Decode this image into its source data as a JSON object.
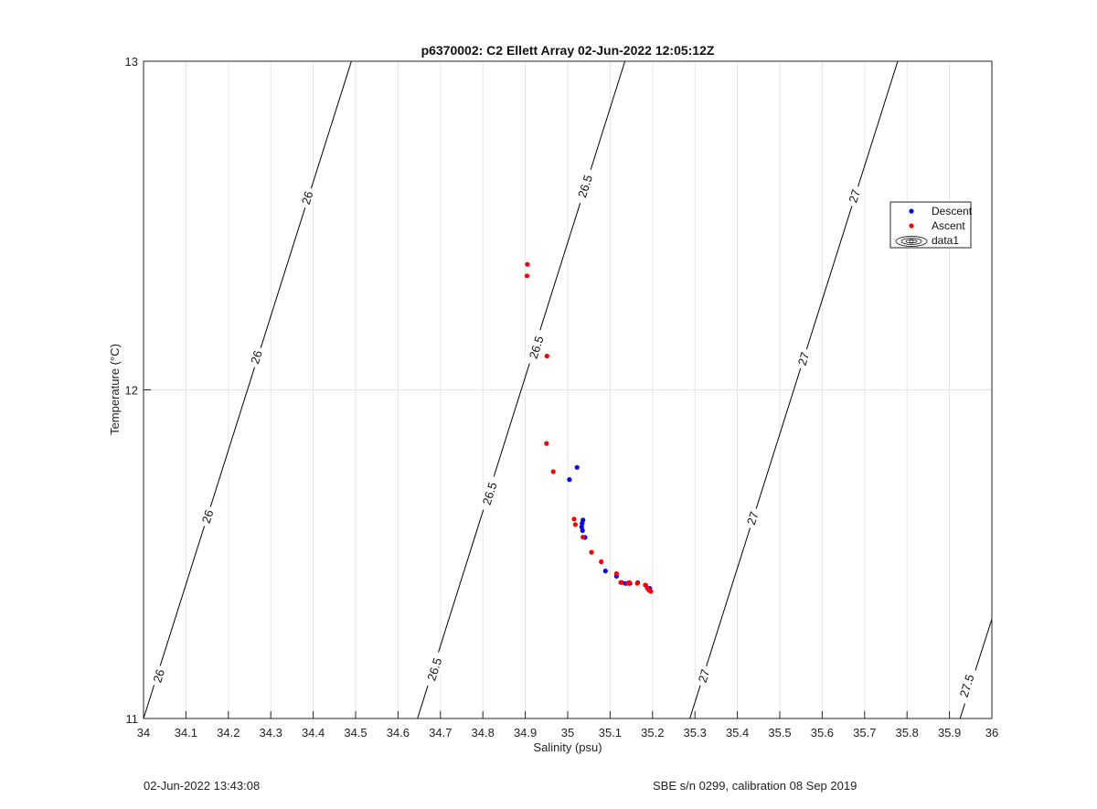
{
  "chart_data": {
    "type": "scatter",
    "title": "p6370002: C2 Ellett Array 02-Jun-2022 12:05:12Z",
    "xlabel": "Salinity (psu)",
    "ylabel": "Temperature (°C)",
    "xlim": [
      34,
      36
    ],
    "ylim": [
      11,
      13
    ],
    "xticks": [
      "34",
      "34.1",
      "34.2",
      "34.3",
      "34.4",
      "34.5",
      "34.6",
      "34.7",
      "34.8",
      "34.9",
      "35",
      "35.1",
      "35.2",
      "35.3",
      "35.4",
      "35.5",
      "35.6",
      "35.7",
      "35.8",
      "35.9",
      "36"
    ],
    "yticks": [
      "11",
      "12",
      "13"
    ],
    "grid": true,
    "legend_position": "top-right",
    "series": [
      {
        "name": "Descent",
        "color": "#0000ff",
        "points": [
          [
            35.022,
            11.764
          ],
          [
            35.004,
            11.727
          ],
          [
            35.036,
            11.604
          ],
          [
            35.034,
            11.594
          ],
          [
            35.033,
            11.583
          ],
          [
            35.035,
            11.572
          ],
          [
            35.041,
            11.551
          ],
          [
            35.089,
            11.449
          ],
          [
            35.115,
            11.433
          ],
          [
            35.127,
            11.414
          ],
          [
            35.136,
            11.411
          ],
          [
            35.147,
            11.411
          ],
          [
            35.165,
            11.413
          ],
          [
            35.184,
            11.405
          ],
          [
            35.193,
            11.396
          ]
        ]
      },
      {
        "name": "Ascent",
        "color": "#ff0000",
        "points": [
          [
            34.905,
            12.382
          ],
          [
            34.904,
            12.347
          ],
          [
            34.951,
            12.103
          ],
          [
            34.95,
            11.837
          ],
          [
            34.966,
            11.751
          ],
          [
            35.015,
            11.607
          ],
          [
            35.018,
            11.59
          ],
          [
            35.036,
            11.552
          ],
          [
            35.056,
            11.506
          ],
          [
            35.079,
            11.477
          ],
          [
            35.115,
            11.441
          ],
          [
            35.125,
            11.414
          ],
          [
            35.141,
            11.411
          ],
          [
            35.145,
            11.414
          ],
          [
            35.164,
            11.411
          ],
          [
            35.183,
            11.406
          ],
          [
            35.188,
            11.396
          ],
          [
            35.192,
            11.39
          ],
          [
            35.196,
            11.387
          ]
        ]
      },
      {
        "name": "data1",
        "type": "contour",
        "color": "#000000",
        "levels": [
          {
            "value": "26",
            "lines": [
              [
                [
                  34.0,
                  11.0
                ],
                [
                  34.49,
                  13.0
                ]
              ]
            ]
          },
          {
            "value": "26.5",
            "lines": [
              [
                [
                  34.646,
                  11.0
                ],
                [
                  35.135,
                  13.0
                ]
              ]
            ]
          },
          {
            "value": "27",
            "lines": [
              [
                [
                  35.288,
                  11.0
                ],
                [
                  35.778,
                  13.0
                ]
              ]
            ]
          },
          {
            "value": "27.5",
            "lines": [
              [
                [
                  35.925,
                  11.0
                ],
                [
                  36.0,
                  11.303
                ]
              ]
            ]
          }
        ],
        "labels": [
          {
            "text": "26",
            "x": 34.035,
            "y": 11.13
          },
          {
            "text": "26",
            "x": 34.15,
            "y": 11.615
          },
          {
            "text": "26",
            "x": 34.265,
            "y": 12.1
          },
          {
            "text": "26",
            "x": 34.385,
            "y": 12.585
          },
          {
            "text": "26.5",
            "x": 34.685,
            "y": 11.15
          },
          {
            "text": "26.5",
            "x": 34.815,
            "y": 11.685
          },
          {
            "text": "26.5",
            "x": 34.925,
            "y": 12.13
          },
          {
            "text": "26.5",
            "x": 35.04,
            "y": 12.62
          },
          {
            "text": "27",
            "x": 35.32,
            "y": 11.13
          },
          {
            "text": "27",
            "x": 35.435,
            "y": 11.61
          },
          {
            "text": "27",
            "x": 35.555,
            "y": 12.095
          },
          {
            "text": "27",
            "x": 35.675,
            "y": 12.59
          },
          {
            "text": "27.5",
            "x": 35.94,
            "y": 11.1
          }
        ]
      }
    ]
  },
  "footer": {
    "left": "02-Jun-2022 13:43:08",
    "right": "SBE s/n 0299, calibration 08 Sep 2019"
  }
}
